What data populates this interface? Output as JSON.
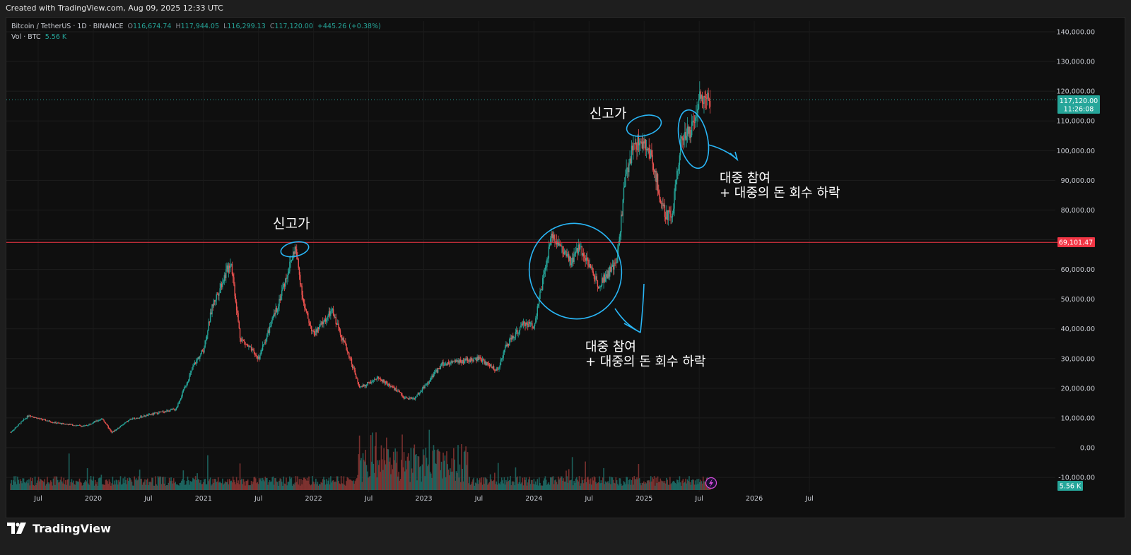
{
  "header": {
    "created_text": "Created with TradingView.com, Aug 09, 2025 12:33 UTC"
  },
  "legend": {
    "symbol": "Bitcoin / TetherUS · 1D · BINANCE",
    "open_label": "O",
    "open": "116,674.74",
    "high_label": "H",
    "high": "117,944.05",
    "low_label": "L",
    "low": "116,299.13",
    "close_label": "C",
    "close": "117,120.00",
    "change": "+445.26 (+0.38%)",
    "vol_label": "Vol · BTC",
    "vol": "5.56 K"
  },
  "price_badge": {
    "price": "117,120.00",
    "countdown": "11:26:08"
  },
  "line_badge": "69,101.47",
  "vol_badge": "5.56 K",
  "footer": {
    "brand": "TradingView"
  },
  "annotations": {
    "high_1": "신고가",
    "high_2": "신고가",
    "note_1_line1": "대중 참여",
    "note_1_line2": "+ 대중의 돈 회수 하락",
    "note_2_line1": "대중 참여",
    "note_2_line2": "+ 대중의 돈 회수 하락"
  },
  "colors": {
    "up": "#26a69a",
    "down": "#ef5350",
    "line": "#f23645",
    "annotation": "#29b6f6",
    "background": "#0f0f0f"
  },
  "icons": {
    "lightning": "lightning-icon"
  },
  "chart_data": {
    "type": "candlestick",
    "title": "Bitcoin / TetherUS · 1D · BINANCE",
    "ylim": [
      -12000,
      145000
    ],
    "y_ticks": [
      140000,
      130000,
      120000,
      110000,
      100000,
      90000,
      80000,
      70000,
      60000,
      50000,
      40000,
      30000,
      20000,
      10000,
      0,
      -10000
    ],
    "y_tick_labels": [
      "140,000.00",
      "130,000.00",
      "120,000.00",
      "110,000.00",
      "100,000.00",
      "90,000.00",
      "80,000.00",
      "70,000.00",
      "60,000.00",
      "50,000.00",
      "40,000.00",
      "30,000.00",
      "20,000.00",
      "10,000.00",
      "0.00",
      "-10,000.00"
    ],
    "x_ticks": [
      "2019-07",
      "2020-01",
      "2020-07",
      "2021-01",
      "2021-07",
      "2022-01",
      "2022-07",
      "2023-01",
      "2023-07",
      "2024-01",
      "2024-07",
      "2025-01",
      "2025-07",
      "2026-01",
      "2026-07"
    ],
    "x_tick_labels": [
      "Jul",
      "2020",
      "Jul",
      "2021",
      "Jul",
      "2022",
      "Jul",
      "2023",
      "Jul",
      "2024",
      "Jul",
      "2025",
      "Jul",
      "2026",
      "Jul"
    ],
    "horizontal_line": 69101.47,
    "last_price": 117120.0,
    "price_path": [
      [
        "2019-04",
        5200
      ],
      [
        "2019-06",
        11000
      ],
      [
        "2019-07",
        9800
      ],
      [
        "2019-09",
        8300
      ],
      [
        "2019-12",
        7200
      ],
      [
        "2020-02",
        9800
      ],
      [
        "2020-03",
        5000
      ],
      [
        "2020-05",
        9500
      ],
      [
        "2020-08",
        11700
      ],
      [
        "2020-10",
        13000
      ],
      [
        "2020-12",
        28000
      ],
      [
        "2021-01",
        33000
      ],
      [
        "2021-02",
        48000
      ],
      [
        "2021-04",
        63000
      ],
      [
        "2021-05",
        37000
      ],
      [
        "2021-07",
        30000
      ],
      [
        "2021-09",
        47000
      ],
      [
        "2021-11",
        67500
      ],
      [
        "2021-12",
        47000
      ],
      [
        "2022-01",
        38000
      ],
      [
        "2022-03",
        46000
      ],
      [
        "2022-05",
        30000
      ],
      [
        "2022-06",
        20000
      ],
      [
        "2022-08",
        23500
      ],
      [
        "2022-10",
        19500
      ],
      [
        "2022-11",
        16500
      ],
      [
        "2022-12",
        16600
      ],
      [
        "2023-03",
        28000
      ],
      [
        "2023-07",
        30000
      ],
      [
        "2023-09",
        26000
      ],
      [
        "2023-10",
        34500
      ],
      [
        "2023-12",
        42000
      ],
      [
        "2024-01",
        41000
      ],
      [
        "2024-03",
        72000
      ],
      [
        "2024-05",
        62000
      ],
      [
        "2024-06",
        68000
      ],
      [
        "2024-08",
        55000
      ],
      [
        "2024-10",
        62000
      ],
      [
        "2024-11",
        92000
      ],
      [
        "2024-12",
        103000
      ],
      [
        "2025-01",
        102000
      ],
      [
        "2025-02",
        96000
      ],
      [
        "2025-03",
        80000
      ],
      [
        "2025-04",
        77000
      ],
      [
        "2025-05",
        104000
      ],
      [
        "2025-06",
        106000
      ],
      [
        "2025-07",
        118000
      ],
      [
        "2025-08",
        117120
      ]
    ],
    "volume_btc_last": "5.56 K"
  }
}
